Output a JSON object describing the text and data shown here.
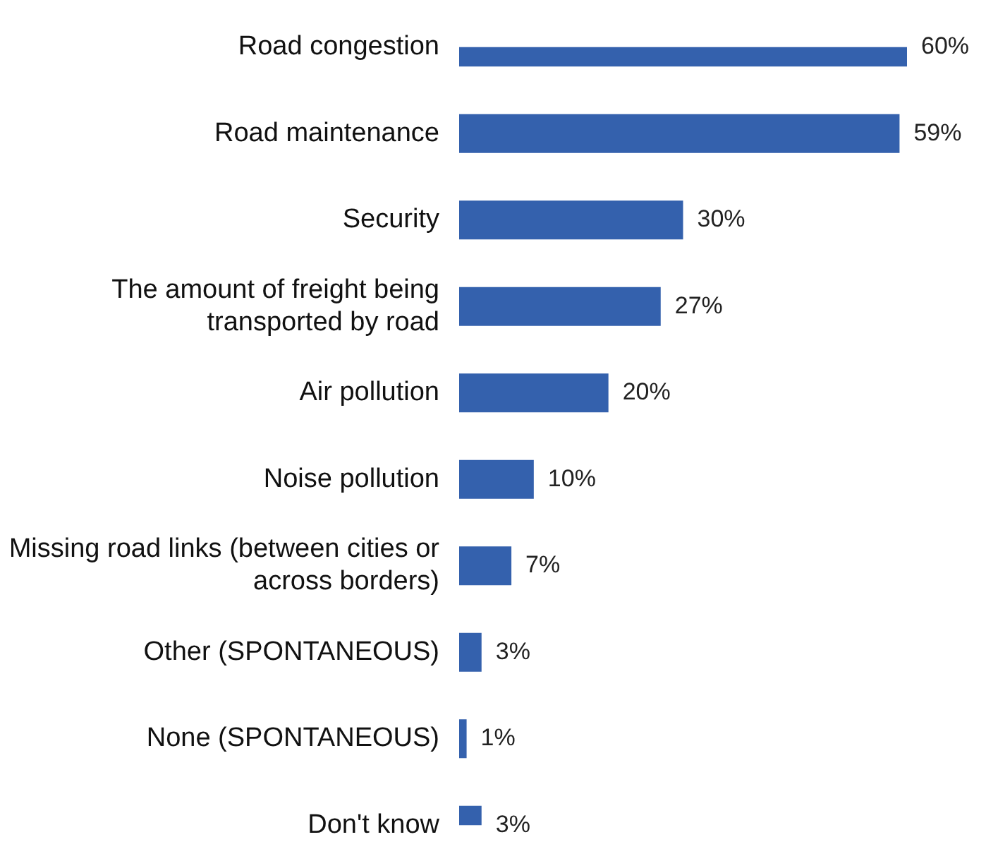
{
  "chart_data": {
    "type": "bar",
    "orientation": "horizontal",
    "categories": [
      "Road congestion",
      "Road maintenance",
      "Security",
      "The amount of freight being transported by road",
      "Air pollution",
      "Noise pollution",
      "Missing road links (between cities or across borders)",
      "Other (SPONTANEOUS)",
      "None (SPONTANEOUS)",
      "Don't know"
    ],
    "values": [
      60,
      59,
      30,
      27,
      20,
      10,
      7,
      3,
      1,
      3
    ],
    "value_labels": [
      "60%",
      "59%",
      "30%",
      "27%",
      "20%",
      "10%",
      "7%",
      "3%",
      "1%",
      "3%"
    ],
    "color": "#3461ad"
  }
}
